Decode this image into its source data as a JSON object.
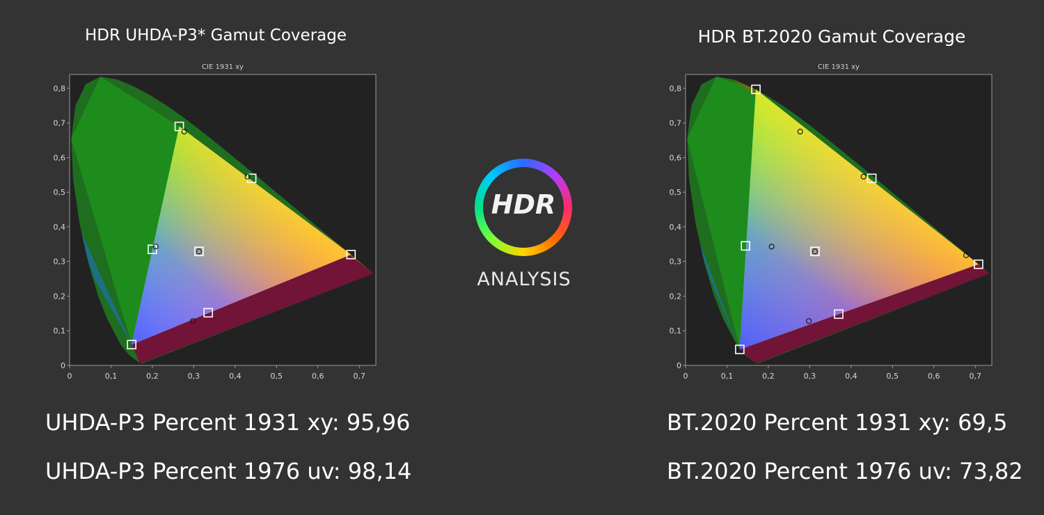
{
  "logo": {
    "word": "HDR",
    "subtitle": "ANALYSIS"
  },
  "colors": {
    "background": "#333333",
    "plot_background": "#222222",
    "text": "#ffffff"
  },
  "chart_data": [
    {
      "type": "scatter",
      "title": "HDR UHDA-P3* Gamut Coverage",
      "subtitle": "CIE 1931 xy",
      "xlim": [
        0,
        0.74
      ],
      "ylim": [
        0,
        0.84
      ],
      "xticks": [
        "0",
        "0,1",
        "0,2",
        "0,3",
        "0,4",
        "0,5",
        "0,6",
        "0,7"
      ],
      "yticks": [
        "0",
        "0,1",
        "0,2",
        "0,3",
        "0,4",
        "0,5",
        "0,6",
        "0,7",
        "0,8"
      ],
      "grid": false,
      "target_points": [
        {
          "x": 0.265,
          "y": 0.69
        },
        {
          "x": 0.68,
          "y": 0.32
        },
        {
          "x": 0.15,
          "y": 0.06
        },
        {
          "x": 0.3127,
          "y": 0.329
        },
        {
          "x": 0.2,
          "y": 0.335
        },
        {
          "x": 0.44,
          "y": 0.54
        },
        {
          "x": 0.335,
          "y": 0.152
        }
      ],
      "measured_points": [
        {
          "x": 0.277,
          "y": 0.675
        },
        {
          "x": 0.208,
          "y": 0.343
        },
        {
          "x": 0.43,
          "y": 0.545
        },
        {
          "x": 0.3127,
          "y": 0.329
        },
        {
          "x": 0.298,
          "y": 0.128
        }
      ],
      "stats": [
        "UHDA-P3 Percent 1931 xy: 95,96",
        "UHDA-P3 Percent 1976 uv: 98,14"
      ]
    },
    {
      "type": "scatter",
      "title": "HDR BT.2020  Gamut Coverage",
      "subtitle": "CIE 1931 xy",
      "xlim": [
        0,
        0.74
      ],
      "ylim": [
        0,
        0.84
      ],
      "xticks": [
        "0",
        "0,1",
        "0,2",
        "0,3",
        "0,4",
        "0,5",
        "0,6",
        "0,7"
      ],
      "yticks": [
        "0",
        "0,1",
        "0,2",
        "0,3",
        "0,4",
        "0,5",
        "0,6",
        "0,7",
        "0,8"
      ],
      "grid": false,
      "target_points": [
        {
          "x": 0.17,
          "y": 0.797
        },
        {
          "x": 0.708,
          "y": 0.292
        },
        {
          "x": 0.131,
          "y": 0.046
        },
        {
          "x": 0.3127,
          "y": 0.329
        },
        {
          "x": 0.145,
          "y": 0.345
        },
        {
          "x": 0.45,
          "y": 0.54
        },
        {
          "x": 0.37,
          "y": 0.148
        }
      ],
      "measured_points": [
        {
          "x": 0.277,
          "y": 0.675
        },
        {
          "x": 0.208,
          "y": 0.343
        },
        {
          "x": 0.43,
          "y": 0.545
        },
        {
          "x": 0.678,
          "y": 0.318
        },
        {
          "x": 0.3127,
          "y": 0.329
        },
        {
          "x": 0.298,
          "y": 0.128
        }
      ],
      "stats": [
        "BT.2020 Percent 1931 xy: 69,5",
        "BT.2020 Percent 1976 uv: 73,82"
      ]
    }
  ]
}
